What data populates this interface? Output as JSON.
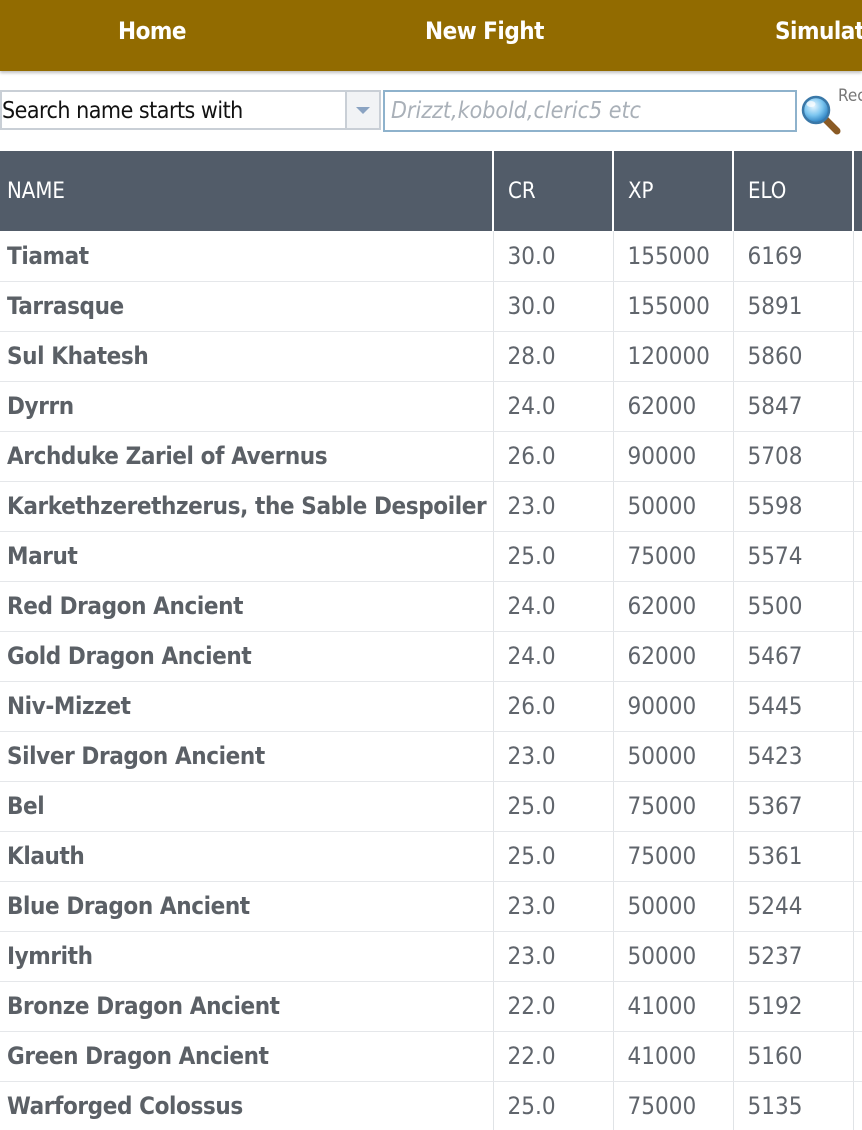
{
  "nav": {
    "items": [
      {
        "label": "Home"
      },
      {
        "label": "New Fight"
      },
      {
        "label": "Simulatio"
      }
    ]
  },
  "search": {
    "mode_label": "Search name starts with",
    "placeholder": "Drizzt,kobold,cleric5 etc",
    "value": "",
    "side_link": "Rec"
  },
  "table": {
    "columns": [
      "NAME",
      "CR",
      "XP",
      "ELO"
    ],
    "rows": [
      {
        "name": "Tiamat",
        "cr": "30.0",
        "xp": "155000",
        "elo": "6169"
      },
      {
        "name": "Tarrasque",
        "cr": "30.0",
        "xp": "155000",
        "elo": "5891"
      },
      {
        "name": "Sul Khatesh",
        "cr": "28.0",
        "xp": "120000",
        "elo": "5860"
      },
      {
        "name": "Dyrrn",
        "cr": "24.0",
        "xp": "62000",
        "elo": "5847"
      },
      {
        "name": "Archduke Zariel of Avernus",
        "cr": "26.0",
        "xp": "90000",
        "elo": "5708"
      },
      {
        "name": "Karkethzerethzerus, the Sable Despoiler",
        "cr": "23.0",
        "xp": "50000",
        "elo": "5598"
      },
      {
        "name": "Marut",
        "cr": "25.0",
        "xp": "75000",
        "elo": "5574"
      },
      {
        "name": "Red Dragon Ancient",
        "cr": "24.0",
        "xp": "62000",
        "elo": "5500"
      },
      {
        "name": "Gold Dragon Ancient",
        "cr": "24.0",
        "xp": "62000",
        "elo": "5467"
      },
      {
        "name": "Niv-Mizzet",
        "cr": "26.0",
        "xp": "90000",
        "elo": "5445"
      },
      {
        "name": "Silver Dragon Ancient",
        "cr": "23.0",
        "xp": "50000",
        "elo": "5423"
      },
      {
        "name": "Bel",
        "cr": "25.0",
        "xp": "75000",
        "elo": "5367"
      },
      {
        "name": "Klauth",
        "cr": "25.0",
        "xp": "75000",
        "elo": "5361"
      },
      {
        "name": "Blue Dragon Ancient",
        "cr": "23.0",
        "xp": "50000",
        "elo": "5244"
      },
      {
        "name": "Iymrith",
        "cr": "23.0",
        "xp": "50000",
        "elo": "5237"
      },
      {
        "name": "Bronze Dragon Ancient",
        "cr": "22.0",
        "xp": "41000",
        "elo": "5192"
      },
      {
        "name": "Green Dragon Ancient",
        "cr": "22.0",
        "xp": "41000",
        "elo": "5160"
      },
      {
        "name": "Warforged Colossus",
        "cr": "25.0",
        "xp": "75000",
        "elo": "5135"
      }
    ]
  },
  "colors": {
    "navbar": "#926b00",
    "table_header": "#525c69",
    "input_border": "#8eb2cc"
  },
  "icons": {
    "search": "magnifier-icon"
  }
}
